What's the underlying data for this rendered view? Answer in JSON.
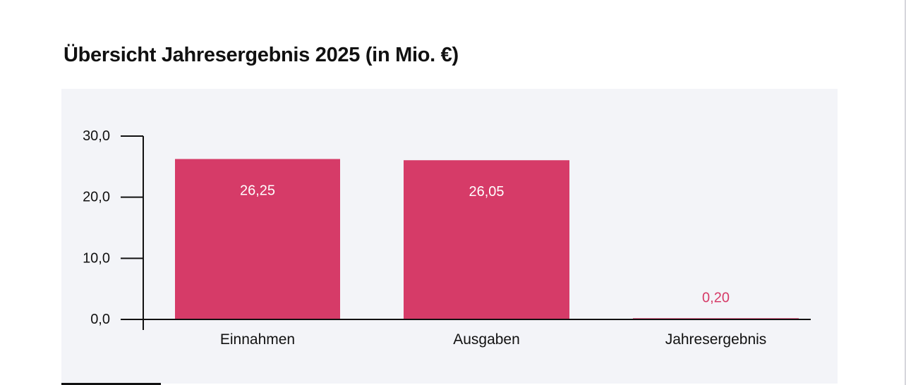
{
  "title": "Übersicht Jahresergebnis 2025 (in Mio. €)",
  "colors": {
    "bar": "#d63b68",
    "inside_label": "#ffffff",
    "outside_label": "#d63b68",
    "axis": "#111111",
    "panel": "#f3f4f8"
  },
  "chart_data": {
    "type": "bar",
    "title": "Übersicht Jahresergebnis 2025 (in Mio. €)",
    "categories": [
      "Einnahmen",
      "Ausgaben",
      "Jahresergebnis"
    ],
    "values": [
      26.25,
      26.05,
      0.2
    ],
    "value_labels": [
      "26,25",
      "26,05",
      "0,20"
    ],
    "ylim": [
      0,
      30
    ],
    "yticks": [
      0,
      10,
      20,
      30
    ],
    "ytick_labels": [
      "0,0",
      "10,0",
      "20,0",
      "30,0"
    ],
    "xlabel": "",
    "ylabel": "",
    "grid": false,
    "legend": "none"
  }
}
